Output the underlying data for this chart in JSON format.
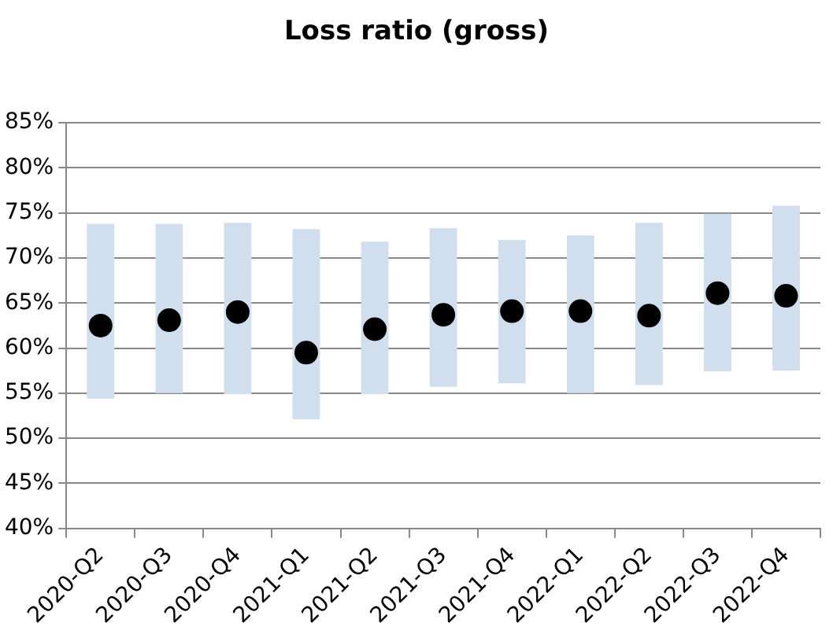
{
  "chart_data": {
    "type": "bar",
    "title": "Loss ratio (gross)",
    "categories": [
      "2020-Q2",
      "2020-Q3",
      "2020-Q4",
      "2021-Q1",
      "2021-Q2",
      "2021-Q3",
      "2021-Q4",
      "2022-Q1",
      "2022-Q2",
      "2022-Q3",
      "2022-Q4"
    ],
    "series": [
      {
        "color": "#d0deee",
        "base": [
          54.4,
          55.0,
          54.9,
          52.1,
          54.9,
          55.7,
          56.1,
          55.0,
          55.9,
          57.4,
          57.5
        ],
        "values": [
          19.4,
          18.8,
          19.0,
          21.1,
          16.9,
          17.6,
          15.9,
          17.5,
          18.0,
          17.5,
          18.3
        ]
      },
      {
        "type": "scatter",
        "color": "#000000",
        "marker": "circle",
        "x": [
          "2020-Q2",
          "2020-Q3",
          "2020-Q4",
          "2021-Q1",
          "2021-Q2",
          "2021-Q3",
          "2021-Q4",
          "2022-Q1",
          "2022-Q2",
          "2022-Q3",
          "2022-Q4"
        ],
        "values": [
          62.5,
          63.1,
          64.0,
          59.5,
          62.1,
          63.7,
          64.1,
          64.1,
          63.6,
          66.1,
          65.8
        ]
      }
    ],
    "ylim": [
      40,
      85
    ],
    "yticks": [
      {
        "value": 40,
        "label": "40%"
      },
      {
        "value": 45,
        "label": "45%"
      },
      {
        "value": 50,
        "label": "50%"
      },
      {
        "value": 55,
        "label": "55%"
      },
      {
        "value": 60,
        "label": "60%"
      },
      {
        "value": 65,
        "label": "65%"
      },
      {
        "value": 70,
        "label": "70%"
      },
      {
        "value": 75,
        "label": "75%"
      },
      {
        "value": 80,
        "label": "80%"
      },
      {
        "value": 85,
        "label": "85%"
      }
    ],
    "grid": "y",
    "legend": false
  }
}
